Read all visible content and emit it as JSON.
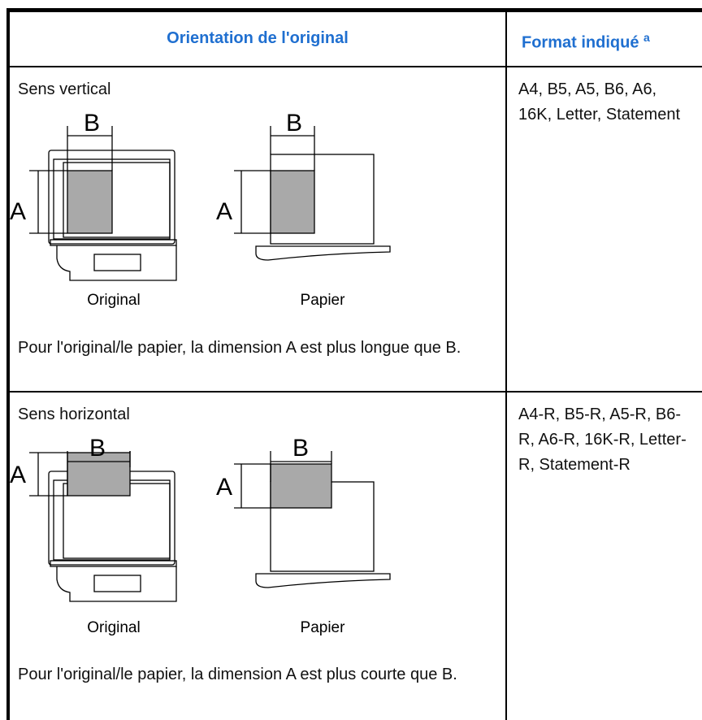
{
  "header": {
    "orientation": "Orientation de l'original",
    "format": "Format indiqué",
    "format_note": "a"
  },
  "rows": [
    {
      "title": "Sens vertical",
      "original": {
        "label_a": "A",
        "label_b": "B",
        "caption": "Original"
      },
      "paper": {
        "label_a": "A",
        "label_b": "B",
        "caption": "Papier"
      },
      "description": "Pour l'original/le papier, la dimension A est plus longue que B.",
      "format": "A4, B5, A5, B6, A6, 16K, Letter, Statement"
    },
    {
      "title": "Sens horizontal",
      "original": {
        "label_a": "A",
        "label_b": "B",
        "caption": "Original"
      },
      "paper": {
        "label_a": "A",
        "label_b": "B",
        "caption": "Papier"
      },
      "description": "Pour l'original/le papier, la dimension A est plus courte que B.",
      "format": "A4-R, B5-R, A5-R, B6-R, A6-R, 16K-R, Letter-R, Statement-R"
    }
  ]
}
